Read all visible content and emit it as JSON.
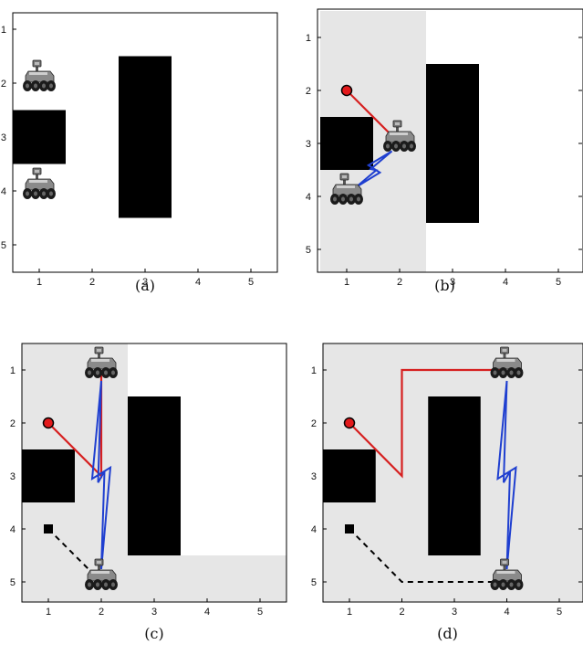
{
  "tick_labels": [
    "1",
    "2",
    "3",
    "4",
    "5"
  ],
  "colors": {
    "free_space": "#ffffff",
    "shaded_region": "#e6e6e6",
    "obstacle": "#000000",
    "target_marker": "#e31a1c",
    "tether_path": "#d62020",
    "wireless_link": "#1f3fd0",
    "base_path": "#000000"
  },
  "icons": {
    "robot": "robot-icon",
    "target": "target-marker-icon",
    "base": "base-square-icon"
  },
  "panels": [
    {
      "caption": "(a)",
      "obstacles": [
        [
          0.5,
          2.5,
          1.5,
          3.5
        ],
        [
          2.5,
          1.5,
          3.5,
          4.5
        ]
      ],
      "shaded": [],
      "robots": [
        [
          1,
          2
        ],
        [
          1,
          4
        ]
      ],
      "target": null,
      "base": null,
      "tether": [],
      "dashed": [],
      "links": []
    },
    {
      "caption": "(b)",
      "obstacles": [
        [
          0.5,
          2.5,
          1.5,
          3.5
        ],
        [
          2.5,
          1.5,
          3.5,
          4.5
        ]
      ],
      "shaded": [
        [
          0.5,
          0.5,
          2.5,
          5.5
        ]
      ],
      "robots": [
        [
          2,
          3
        ],
        [
          1,
          4
        ]
      ],
      "target": [
        1,
        2
      ],
      "base": null,
      "tether": [
        [
          1,
          2
        ],
        [
          2,
          3
        ]
      ],
      "dashed": [],
      "links": [
        [
          [
            2,
            3
          ],
          [
            1,
            4
          ]
        ]
      ]
    },
    {
      "caption": "(c)",
      "obstacles": [
        [
          0.5,
          2.5,
          1.5,
          3.5
        ],
        [
          2.5,
          1.5,
          3.5,
          4.5
        ]
      ],
      "shaded": [
        [
          0.5,
          0.5,
          2.5,
          5.5
        ],
        [
          2.5,
          4.5,
          5.5,
          5.5
        ]
      ],
      "robots": [
        [
          2,
          1
        ],
        [
          2,
          5
        ]
      ],
      "target": [
        1,
        2
      ],
      "base": [
        1,
        4
      ],
      "tether": [
        [
          1,
          2
        ],
        [
          2,
          3
        ],
        [
          2,
          1
        ]
      ],
      "dashed": [
        [
          1,
          4
        ],
        [
          2,
          5
        ]
      ],
      "links": [
        [
          [
            2,
            1
          ],
          [
            2,
            5
          ]
        ]
      ]
    },
    {
      "caption": "(d)",
      "obstacles": [
        [
          0.5,
          2.5,
          1.5,
          3.5
        ],
        [
          2.5,
          1.5,
          3.5,
          4.5
        ]
      ],
      "shaded": [
        [
          0.5,
          0.5,
          5.5,
          5.5
        ]
      ],
      "robots": [
        [
          4,
          1
        ],
        [
          4,
          5
        ]
      ],
      "target": [
        1,
        2
      ],
      "base": [
        1,
        4
      ],
      "tether": [
        [
          1,
          2
        ],
        [
          2,
          3
        ],
        [
          2,
          1
        ],
        [
          4,
          1
        ]
      ],
      "dashed": [
        [
          1,
          4
        ],
        [
          2,
          5
        ],
        [
          4,
          5
        ]
      ],
      "links": [
        [
          [
            4,
            1
          ],
          [
            4,
            5
          ]
        ]
      ]
    }
  ]
}
